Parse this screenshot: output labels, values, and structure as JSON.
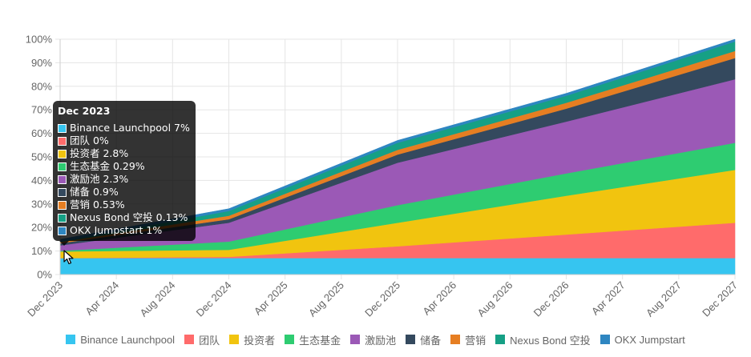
{
  "chart_data": {
    "type": "area",
    "stacked": true,
    "x": [
      "Dec 2023",
      "Dec 2024",
      "Dec 2025",
      "Dec 2026",
      "Dec 2027"
    ],
    "x_tick_labels": [
      "Dec 2023",
      "Apr 2024",
      "Aug 2024",
      "Dec 2024",
      "Apr 2025",
      "Aug 2025",
      "Dec 2025",
      "Apr 2026",
      "Aug 2026",
      "Dec 2026",
      "Apr 2027",
      "Aug 2027",
      "Dec 2027"
    ],
    "y_tick_labels": [
      "0%",
      "10%",
      "20%",
      "30%",
      "40%",
      "50%",
      "60%",
      "70%",
      "80%",
      "90%",
      "100%"
    ],
    "ylim": [
      0,
      100
    ],
    "grid": true,
    "legend_position": "bottom",
    "series": [
      {
        "name": "Binance Launchpool",
        "color": "#36C5F0",
        "values": [
          7,
          7,
          7,
          7,
          7
        ]
      },
      {
        "name": "团队",
        "color": "#FF6B6B",
        "values": [
          0,
          0.5,
          5,
          10,
          15
        ]
      },
      {
        "name": "投资者",
        "color": "#F1C40F",
        "values": [
          2.8,
          3,
          10,
          16.5,
          22.5
        ]
      },
      {
        "name": "生态基金",
        "color": "#2ECC71",
        "values": [
          0.29,
          3.5,
          7.5,
          9.5,
          11.5
        ]
      },
      {
        "name": "激励池",
        "color": "#9B59B6",
        "values": [
          2.3,
          8,
          18,
          22,
          27
        ]
      },
      {
        "name": "储备",
        "color": "#34495E",
        "values": [
          0.9,
          1.5,
          3.5,
          5.5,
          9
        ]
      },
      {
        "name": "营销",
        "color": "#E67E22",
        "values": [
          0.53,
          1.5,
          2,
          2.5,
          3
        ]
      },
      {
        "name": "Nexus Bond 空投",
        "color": "#16A085",
        "values": [
          0.13,
          2,
          3,
          3,
          4
        ]
      },
      {
        "name": "OKX Jumpstart",
        "color": "#2E86C1",
        "values": [
          1,
          1,
          1,
          1,
          1
        ]
      }
    ]
  },
  "tooltip": {
    "title": "Dec 2023",
    "rows": [
      {
        "label": "Binance Launchpool 7%",
        "color": "#36C5F0"
      },
      {
        "label": "团队 0%",
        "color": "#FF6B6B"
      },
      {
        "label": "投资者 2.8%",
        "color": "#F1C40F"
      },
      {
        "label": "生态基金 0.29%",
        "color": "#2ECC71"
      },
      {
        "label": "激励池 2.3%",
        "color": "#9B59B6"
      },
      {
        "label": "储备 0.9%",
        "color": "#34495E"
      },
      {
        "label": "营销 0.53%",
        "color": "#E67E22"
      },
      {
        "label": "Nexus Bond 空投 0.13%",
        "color": "#16A085"
      },
      {
        "label": "OKX Jumpstart 1%",
        "color": "#2E86C1"
      }
    ]
  }
}
